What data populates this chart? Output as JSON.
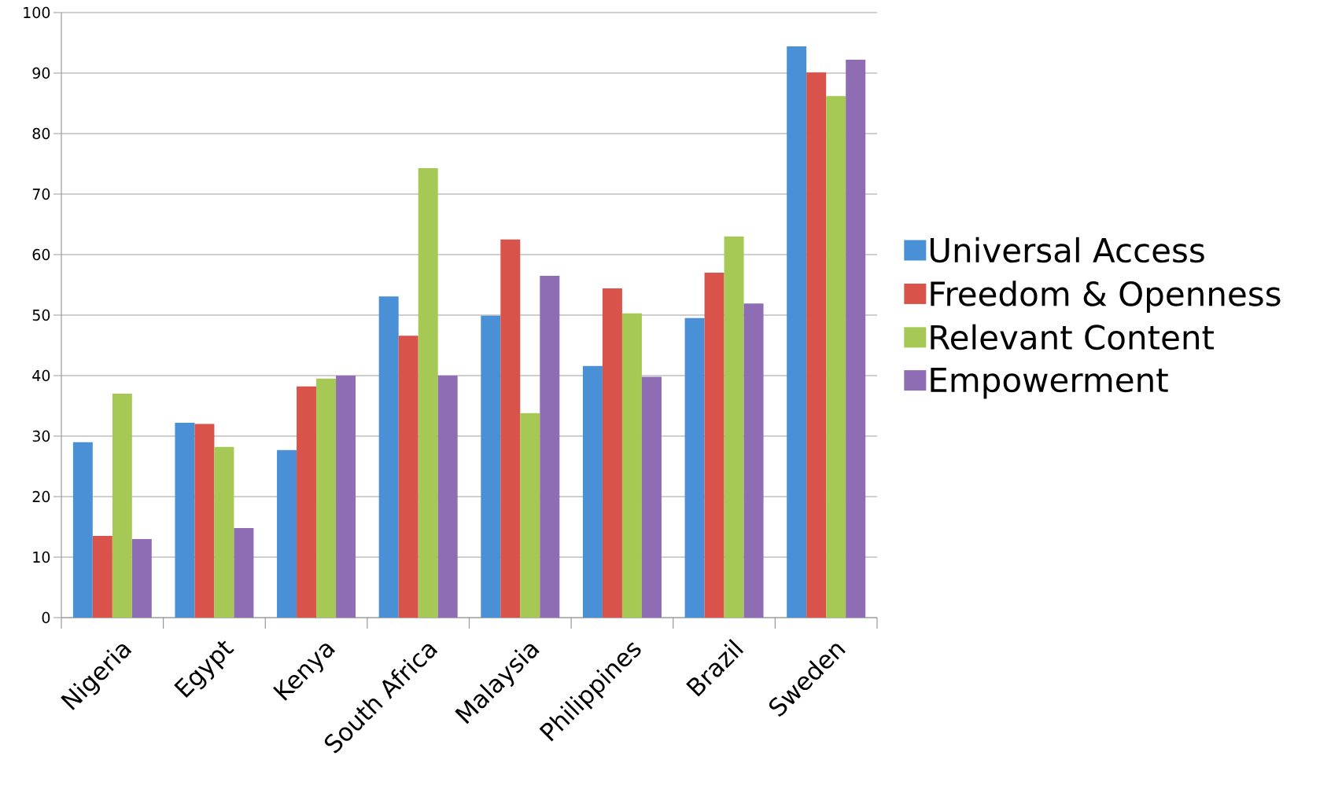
{
  "chart_data": {
    "type": "bar",
    "categories": [
      "Nigeria",
      "Egypt",
      "Kenya",
      "South Africa",
      "Malaysia",
      "Philippines",
      "Brazil",
      "Sweden"
    ],
    "series": [
      {
        "name": "Universal Access",
        "color": "#4a90d6",
        "values": [
          29.0,
          32.2,
          27.7,
          53.1,
          49.9,
          41.6,
          49.5,
          94.4
        ]
      },
      {
        "name": "Freedom & Openness",
        "color": "#d9534a",
        "values": [
          13.5,
          32.0,
          38.2,
          46.6,
          62.5,
          54.4,
          57.0,
          90.1
        ]
      },
      {
        "name": "Relevant Content",
        "color": "#a5c954",
        "values": [
          37.0,
          28.2,
          39.5,
          74.3,
          33.8,
          50.3,
          63.0,
          86.2
        ]
      },
      {
        "name": "Empowerment",
        "color": "#8f6db5",
        "values": [
          13.0,
          14.8,
          40.0,
          40.0,
          56.5,
          39.8,
          51.9,
          92.2
        ]
      }
    ],
    "ylim": [
      0,
      100
    ],
    "yticks": [
      0,
      10,
      20,
      30,
      40,
      50,
      60,
      70,
      80,
      90,
      100
    ],
    "grid": "y",
    "legend": "right"
  }
}
